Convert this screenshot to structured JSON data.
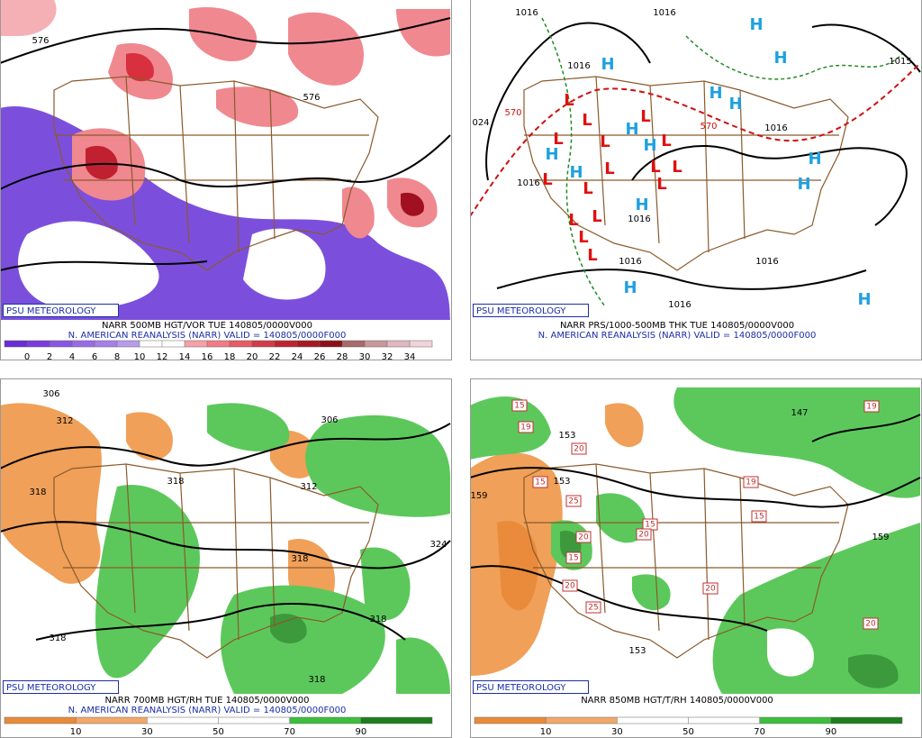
{
  "panels": [
    {
      "label": "PSU METEOROLOGY",
      "title": "NARR 500MB HGT/VOR TUE 140805/0000V000",
      "subtitle": "N. AMERICAN REANALYSIS (NARR) VALID = 140805/0000F000",
      "colorbar": {
        "ticks": [
          0,
          2,
          4,
          6,
          8,
          10,
          12,
          14,
          16,
          18,
          20,
          22,
          24,
          26,
          28,
          30,
          32,
          34
        ],
        "colors": [
          "#6a2bd8",
          "#7a3be0",
          "#8a55e4",
          "#9a6ae6",
          "#a680e8",
          "#b79cec",
          "#ffffff",
          "#ffffff",
          "#f7a0a8",
          "#f07c86",
          "#e85a66",
          "#d43a48",
          "#bf2230",
          "#a61822",
          "#8c1018",
          "#a86a6a",
          "#c89898",
          "#e0b8c0",
          "#f0d4dc"
        ]
      },
      "contour_labels": [
        "576",
        "576"
      ]
    },
    {
      "label": "PSU METEOROLOGY",
      "title": "NARR PRS/1000-500MB THK TUE 140805/0000V000",
      "subtitle": "N. AMERICAN REANALYSIS (NARR) VALID = 140805/0000F000",
      "contour_labels": [
        "1016",
        "1016",
        "1016",
        "1016",
        "1016",
        "1016",
        "1016",
        "1016",
        "1016",
        "1015",
        "570",
        "570",
        "024"
      ],
      "highs": [
        "H",
        "H",
        "H",
        "H",
        "H",
        "H",
        "H",
        "H",
        "H",
        "H",
        "H",
        "H",
        "H",
        "H"
      ],
      "lows": [
        "L",
        "L",
        "L",
        "L",
        "L",
        "L",
        "L",
        "L",
        "L",
        "L",
        "L",
        "L",
        "L",
        "L",
        "L",
        "L"
      ]
    },
    {
      "label": "PSU METEOROLOGY",
      "title": "NARR 700MB HGT/RH TUE 140805/0000V000",
      "subtitle": "N. AMERICAN REANALYSIS (NARR) VALID = 140805/0000F000",
      "colorbar": {
        "ticks": [
          10,
          30,
          50,
          70,
          90
        ],
        "colors": [
          "#e98b3a",
          "#f2a868",
          "#ffffff",
          "#ffffff",
          "#3cbf3c",
          "#1e7d1e"
        ]
      },
      "contour_labels": [
        "306",
        "312",
        "318",
        "318",
        "306",
        "312",
        "318",
        "324",
        "318",
        "318",
        "318"
      ]
    },
    {
      "label": "PSU METEOROLOGY",
      "title": "NARR 850MB HGT/T/RH 140805/0000V000",
      "colorbar": {
        "ticks": [
          10,
          30,
          50,
          70,
          90
        ],
        "colors": [
          "#e98b3a",
          "#f2a868",
          "#ffffff",
          "#ffffff",
          "#3cbf3c",
          "#1e7d1e"
        ]
      },
      "contour_labels": [
        "153",
        "153",
        "159",
        "153",
        "147",
        "159"
      ],
      "temperature_labels": [
        "15",
        "15",
        "15",
        "15",
        "15",
        "19",
        "19",
        "19",
        "20",
        "20",
        "20",
        "20",
        "20",
        "20",
        "25",
        "25"
      ]
    }
  ]
}
